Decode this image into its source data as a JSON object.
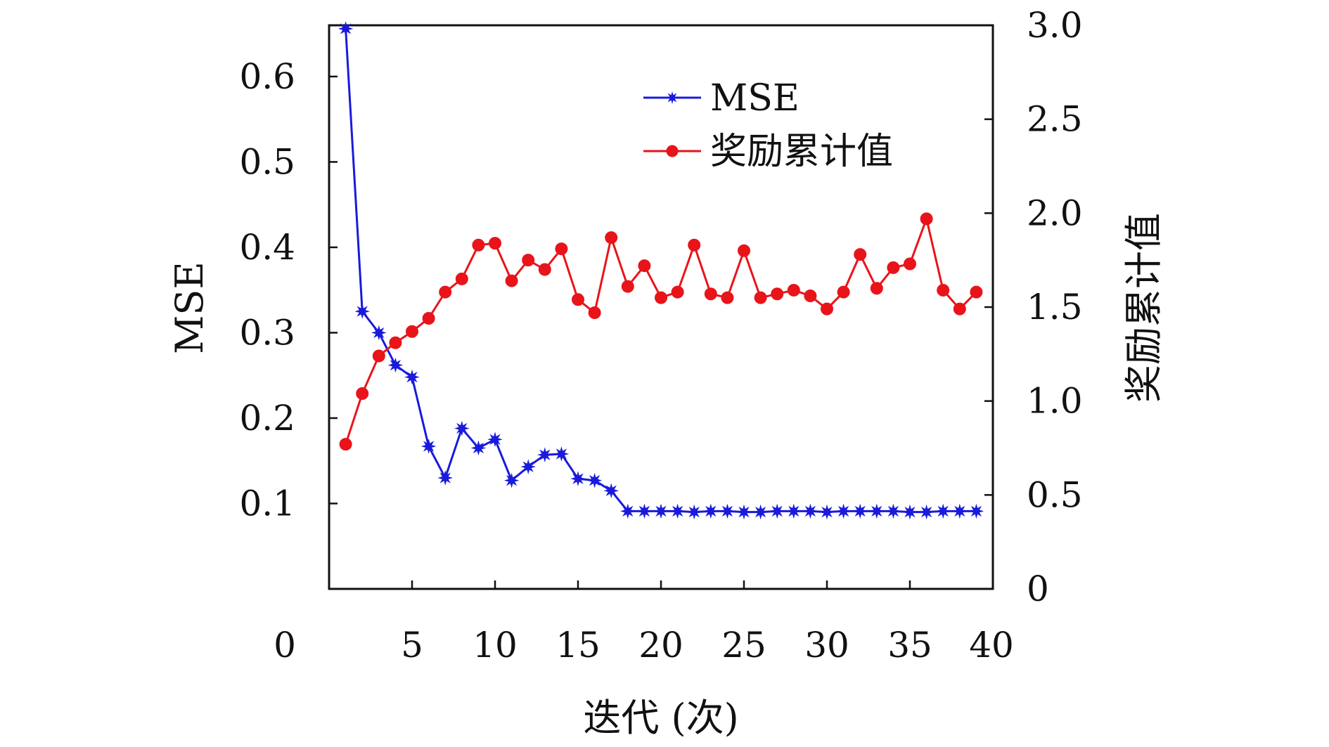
{
  "chart_data": {
    "type": "line",
    "xlabel": "迭代 (次)",
    "ylabel_left": "MSE",
    "ylabel_right": "奖励累计值",
    "xlim": [
      0,
      40
    ],
    "ylim_left": [
      0,
      0.66
    ],
    "ylim_right": [
      0,
      3.0
    ],
    "x_ticks": [
      0,
      5,
      10,
      15,
      20,
      25,
      30,
      35,
      40
    ],
    "x_tick_labels": [
      "0",
      "5",
      "10",
      "15",
      "20",
      "25",
      "30",
      "35",
      "40"
    ],
    "y_left_ticks": [
      0.1,
      0.2,
      0.3,
      0.4,
      0.5,
      0.6
    ],
    "y_left_tick_labels": [
      "0.1",
      "0.2",
      "0.3",
      "0.4",
      "0.5",
      "0.6"
    ],
    "y_right_ticks": [
      0,
      0.5,
      1.0,
      1.5,
      2.0,
      2.5,
      3.0
    ],
    "y_right_tick_labels": [
      "0",
      "0.5",
      "1.0",
      "1.5",
      "2.0",
      "2.5",
      "3.0"
    ],
    "grid": false,
    "legend_position": "top-right",
    "series": [
      {
        "name": "MSE",
        "axis": "left",
        "color": "#1a1adb",
        "marker": "star",
        "x": [
          1,
          2,
          3,
          4,
          5,
          6,
          7,
          8,
          9,
          10,
          11,
          12,
          13,
          14,
          15,
          16,
          17,
          18,
          19,
          20,
          21,
          22,
          23,
          24,
          25,
          26,
          27,
          28,
          29,
          30,
          31,
          32,
          33,
          34,
          35,
          36,
          37,
          38,
          39
        ],
        "y": [
          0.656,
          0.325,
          0.3,
          0.262,
          0.248,
          0.167,
          0.13,
          0.188,
          0.165,
          0.175,
          0.127,
          0.143,
          0.157,
          0.158,
          0.129,
          0.127,
          0.115,
          0.091,
          0.091,
          0.091,
          0.091,
          0.09,
          0.091,
          0.091,
          0.09,
          0.09,
          0.091,
          0.091,
          0.091,
          0.09,
          0.091,
          0.091,
          0.091,
          0.091,
          0.09,
          0.09,
          0.091,
          0.091,
          0.091
        ]
      },
      {
        "name": "奖励累计值",
        "axis": "right",
        "color": "#e8141a",
        "marker": "circle",
        "x": [
          1,
          2,
          3,
          4,
          5,
          6,
          7,
          8,
          9,
          10,
          11,
          12,
          13,
          14,
          15,
          16,
          17,
          18,
          19,
          20,
          21,
          22,
          23,
          24,
          25,
          26,
          27,
          28,
          29,
          30,
          31,
          32,
          33,
          34,
          35,
          36,
          37,
          38,
          39
        ],
        "y": [
          0.77,
          1.04,
          1.24,
          1.31,
          1.37,
          1.44,
          1.58,
          1.65,
          1.83,
          1.84,
          1.64,
          1.75,
          1.7,
          1.81,
          1.54,
          1.47,
          1.87,
          1.61,
          1.72,
          1.55,
          1.58,
          1.83,
          1.57,
          1.55,
          1.8,
          1.55,
          1.57,
          1.59,
          1.56,
          1.49,
          1.58,
          1.78,
          1.6,
          1.71,
          1.73,
          1.97,
          1.59,
          1.49,
          1.58
        ]
      }
    ]
  }
}
